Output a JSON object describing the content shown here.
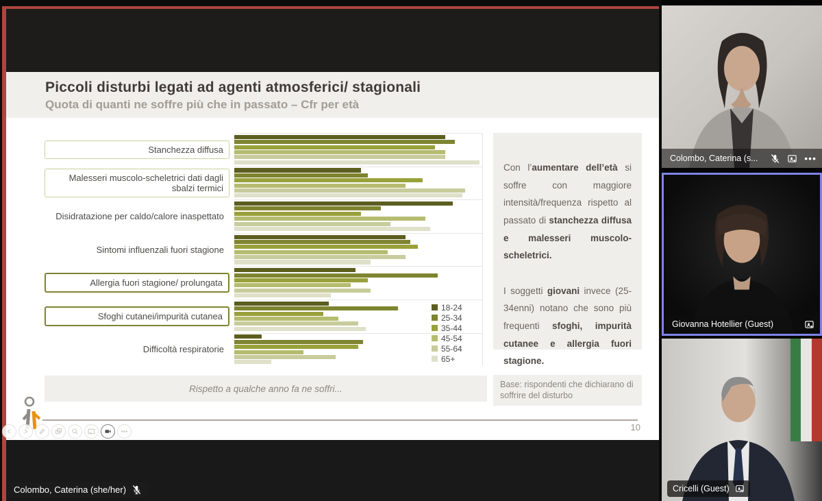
{
  "slide": {
    "title": "Piccoli disturbi legati ad agenti atmosferici/ stagionali",
    "subtitle": "Quota di quanti ne soffre più che in passato – Cfr per età",
    "footer_note": "Rispetto a qualche anno fa ne soffri...",
    "base_note": "Base: rispondenti che dichiarano di soffrire del disturbo",
    "page_number": "10"
  },
  "commentary": {
    "paragraphs": [
      {
        "runs": [
          {
            "t": "Con l’"
          },
          {
            "t": "aumentare dell’età",
            "b": true
          },
          {
            "t": " si soffre con maggiore intensità/frequenza rispetto al passato di "
          },
          {
            "t": "stanchezza diffusa e malesseri muscolo-scheletrici.",
            "b": true
          }
        ]
      },
      {
        "runs": [
          {
            "t": "I soggetti "
          },
          {
            "t": "giovani",
            "b": true
          },
          {
            "t": " invece (25-34enni) notano che sono più frequenti "
          },
          {
            "t": "sfoghi, impurità cutanee e allergia fuori stagione.",
            "b": true
          }
        ]
      }
    ]
  },
  "chart_data": {
    "type": "bar",
    "orientation": "horizontal",
    "title": "Piccoli disturbi legati ad agenti atmosferici/ stagionali",
    "subtitle": "Quota di quanti ne soffre più che in passato – Cfr per età",
    "xlabel": "",
    "ylabel": "",
    "xlim": [
      0,
      100
    ],
    "grid": "category separators only",
    "legend_position": "inside-right-bottom",
    "legend": [
      "18-24",
      "25-34",
      "35-44",
      "45-54",
      "55-64",
      "65+"
    ],
    "series_colors": [
      "#5c5e1f",
      "#7e8430",
      "#99a13b",
      "#b5bc70",
      "#c8cc9d",
      "#dee0c9"
    ],
    "categories": [
      "Stanchezza diffusa",
      "Malesseri muscolo-scheletrici dati dagli sbalzi termici",
      "Disidratazione per caldo/calore inaspettato",
      "Sintomi influenzali fuori stagione",
      "Allergia fuori stagione/ prolungata",
      "Sfoghi cutanei/impurità cutanea",
      "Difficoltà respiratorie"
    ],
    "category_box": [
      "light",
      "light",
      null,
      null,
      "dark",
      "dark",
      null
    ],
    "series": [
      {
        "name": "18-24",
        "values": [
          85,
          51,
          88,
          69,
          49,
          38,
          11
        ]
      },
      {
        "name": "25-34",
        "values": [
          89,
          54,
          59,
          71,
          82,
          66,
          52
        ]
      },
      {
        "name": "35-44",
        "values": [
          81,
          76,
          51,
          74,
          54,
          36,
          50
        ]
      },
      {
        "name": "45-54",
        "values": [
          85,
          69,
          77,
          62,
          47,
          42,
          28
        ]
      },
      {
        "name": "55-64",
        "values": [
          85,
          93,
          63,
          69,
          55,
          50,
          41
        ]
      },
      {
        "name": "65+",
        "values": [
          99,
          92,
          79,
          55,
          39,
          53,
          15
        ]
      }
    ]
  },
  "slide_controls": {
    "items": [
      "previous",
      "next",
      "pen",
      "slides",
      "zoom",
      "captions",
      "camera",
      "more"
    ],
    "active": "camera"
  },
  "presenter_overlay": {
    "name": "Colombo, Caterina (she/her)",
    "muted": true
  },
  "participants": {
    "tiles": [
      {
        "label": "Colombo, Caterina (s...",
        "muted": true,
        "icons": [
          "mic-off",
          "fit-to-frame",
          "more"
        ]
      },
      {
        "label": "Giovanna Hotellier (Guest)",
        "speaking": true,
        "icons": [
          "fit-to-frame"
        ]
      },
      {
        "label": "Cricelli (Guest)",
        "icons": [
          "fit-to-frame"
        ]
      }
    ]
  },
  "colors": {
    "speaking_border": "#7e84e8",
    "share_border": "#b0453f",
    "panel_bg": "#f1efec"
  }
}
